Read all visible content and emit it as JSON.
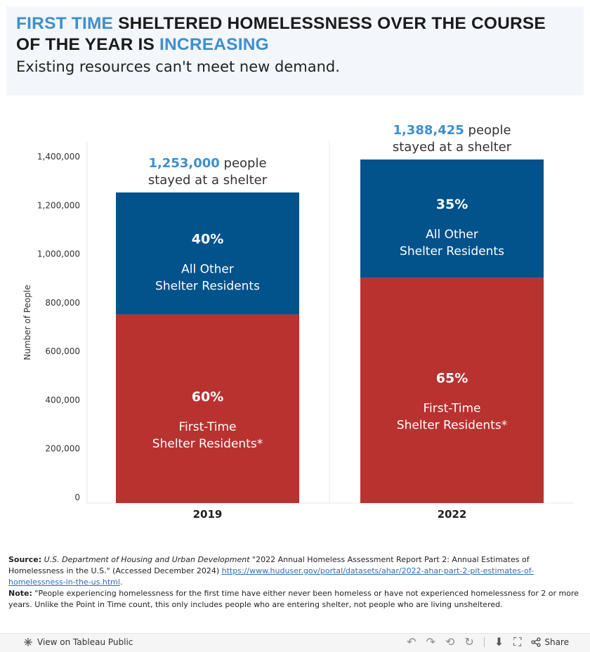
{
  "header": {
    "title_part1": "FIRST TIME",
    "title_part2": " SHELTERED HOMELESSNESS OVER THE COURSE OF THE YEAR IS ",
    "title_part3": "INCREASING",
    "subtitle": "Existing resources can't meet new demand."
  },
  "chart_data": {
    "type": "bar",
    "stacked": true,
    "categories": [
      "2019",
      "2022"
    ],
    "series": [
      {
        "name": "First-Time Shelter Residents*",
        "values": [
          751800,
          902476
        ],
        "percents": [
          "60%",
          "65%"
        ],
        "color": "#b83230"
      },
      {
        "name": "All Other Shelter Residents",
        "values": [
          501200,
          485949
        ],
        "percents": [
          "40%",
          "35%"
        ],
        "color": "#02528c"
      }
    ],
    "totals": [
      {
        "value_label": "1,253,000",
        "unit": " people",
        "line2": "stayed at a shelter",
        "value": 1253000
      },
      {
        "value_label": "1,388,425",
        "unit": " people",
        "line2": "stayed at a shelter",
        "value": 1388425
      }
    ],
    "segment_labels": {
      "first_time_line1": "First-Time",
      "first_time_line2": "Shelter Residents*",
      "other_line1": "All Other",
      "other_line2": "Shelter Residents"
    },
    "ylabel": "Number of People",
    "ylim": [
      0,
      1450000
    ],
    "yticks": [
      0,
      200000,
      400000,
      600000,
      800000,
      1000000,
      1200000,
      1400000
    ],
    "ytick_labels": [
      "0",
      "200,000",
      "400,000",
      "600,000",
      "800,000",
      "1,000,000",
      "1,200,000",
      "1,400,000"
    ],
    "accent_color": "#3d8fcf"
  },
  "notes": {
    "source_label": "Source:",
    "source_org": "U.S. Department of Housing and Urban Development",
    "source_text": " \"2022 Annual Homeless Assessment Report Part 2: Annual Estimates of Homelessness in the U.S.\" (Accessed December 2024) ",
    "source_link": "https://www.huduser.gov/portal/datasets/ahar/2022-ahar-part-2-pit-estimates-of-homelessness-in-the-us.html",
    "source_end": ".",
    "note_label": "Note:",
    "note_text": " \"People experiencing homelessness for the first time have either never been homeless or have not experienced homelessness for 2 or more years. Unlike the Point in Time count, this only includes people who are entering shelter, not people who are living unsheltered."
  },
  "footer": {
    "view_label": "View on Tableau Public",
    "share_label": "Share",
    "icons": [
      "tableau-icon",
      "undo-icon",
      "redo-icon",
      "revert-icon",
      "refresh-icon",
      "download-icon",
      "fullscreen-icon",
      "share-icon"
    ]
  }
}
